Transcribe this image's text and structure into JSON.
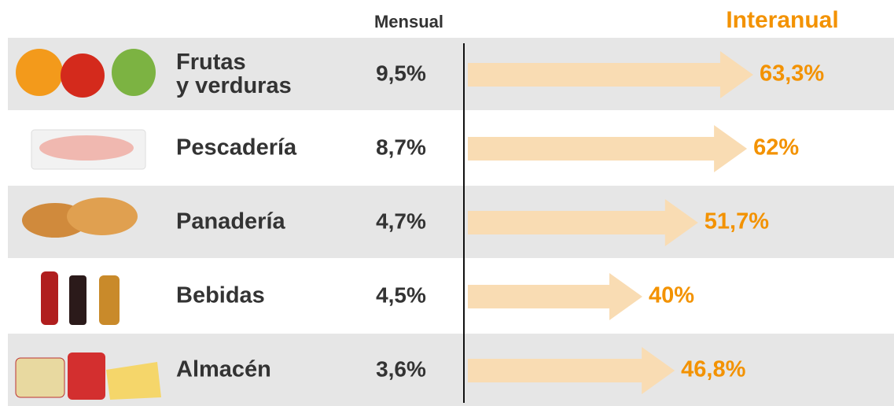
{
  "chart_data": {
    "type": "arrow",
    "categories": [
      "Frutas\ny verduras",
      "Pescadería",
      "Panadería",
      "Bebidas",
      "Almacén"
    ],
    "series": [
      {
        "name": "Mensual",
        "color": "#333333",
        "values": [
          9.5,
          8.7,
          4.7,
          4.5,
          3.6
        ],
        "value_labels": [
          "9,5%",
          "8,7%",
          "4,7%",
          "4,5%",
          "3,6%"
        ]
      },
      {
        "name": "Interanual",
        "color": "#f39200",
        "values": [
          63.3,
          62,
          51.7,
          40,
          46.8
        ],
        "value_labels": [
          "63,3%",
          "62%",
          "51,7%",
          "40%",
          "46,8%"
        ]
      }
    ]
  }
}
